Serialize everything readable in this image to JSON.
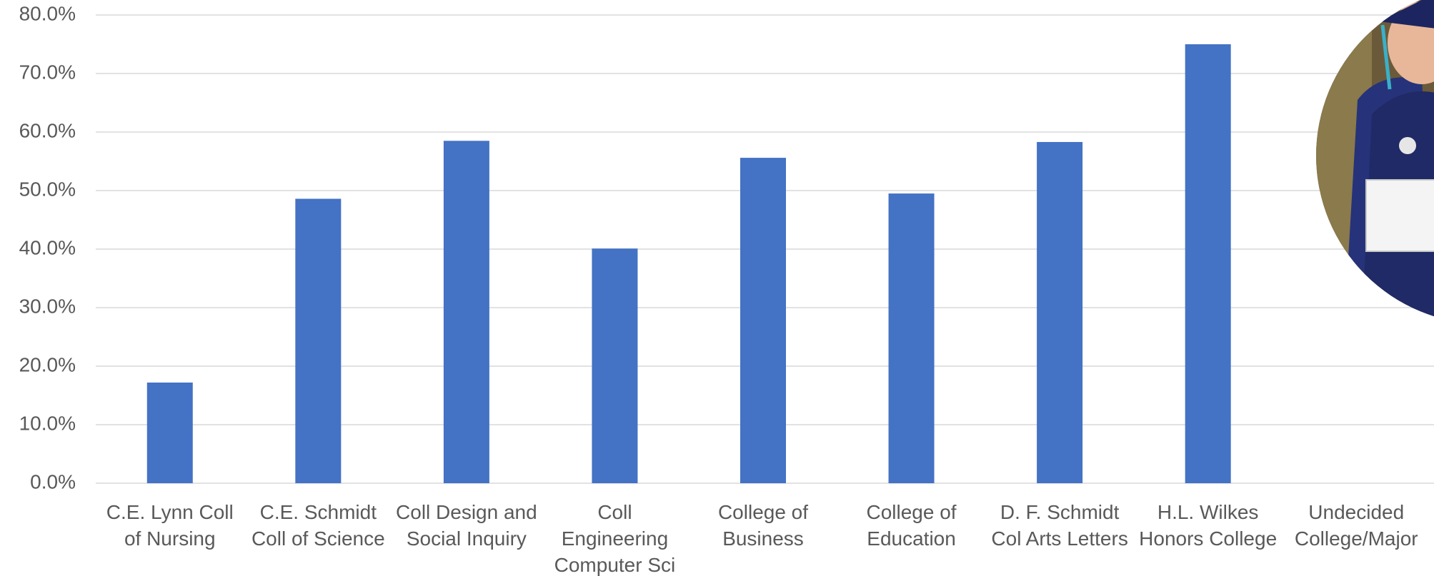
{
  "chart_data": {
    "type": "bar",
    "categories": [
      "C.E. Lynn Coll of Nursing",
      "C.E. Schmidt Coll of Science",
      "Coll Design and Social Inquiry",
      "Coll Engineering Computer Sci",
      "College of Business",
      "College of Education",
      "D. F. Schmidt Col Arts Letters",
      "H.L. Wilkes Honors College",
      "Undecided College/Major"
    ],
    "values": [
      17.2,
      48.6,
      58.5,
      40.1,
      55.6,
      49.5,
      58.3,
      75.0,
      null
    ],
    "color": "#4472c4",
    "ylim": [
      0,
      80
    ],
    "yticks": [
      {
        "value": 0,
        "label": "0.0%"
      },
      {
        "value": 10,
        "label": "10.0%"
      },
      {
        "value": 20,
        "label": "20.0%"
      },
      {
        "value": 30,
        "label": "30.0%"
      },
      {
        "value": 40,
        "label": "40.0%"
      },
      {
        "value": 50,
        "label": "50.0%"
      },
      {
        "value": 60,
        "label": "60.0%"
      },
      {
        "value": 70,
        "label": "70.0%"
      },
      {
        "value": 80,
        "label": "80.0%"
      }
    ],
    "grid": true
  }
}
